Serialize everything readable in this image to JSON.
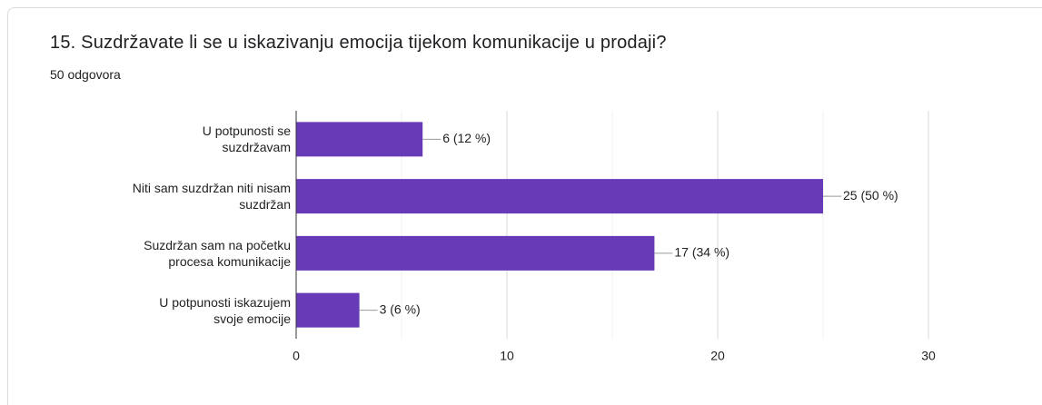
{
  "chart_data": {
    "type": "bar",
    "orientation": "horizontal",
    "title": "15. Suzdržavate li se u iskazivanju emocija tijekom komunikacije u prodaji?",
    "subtitle": "50 odgovora",
    "categories": [
      "U potpunosti se\nsuzdržavam",
      "Niti sam suzdržan niti nisam\nsuzdržan",
      "Suzdržan sam na početku\nprocesa komunikacije",
      "U potpunosti iskazujem\nsvoje emocije"
    ],
    "values": [
      6,
      25,
      17,
      3
    ],
    "value_labels": [
      "6 (12 %)",
      "25 (50 %)",
      "17 (34 %)",
      "3 (6 %)"
    ],
    "color": "#673ab7",
    "xlim": [
      0,
      30
    ],
    "xticks": [
      0,
      10,
      20,
      30
    ],
    "minor_xticks": [
      5,
      15,
      25
    ],
    "grid": true
  }
}
